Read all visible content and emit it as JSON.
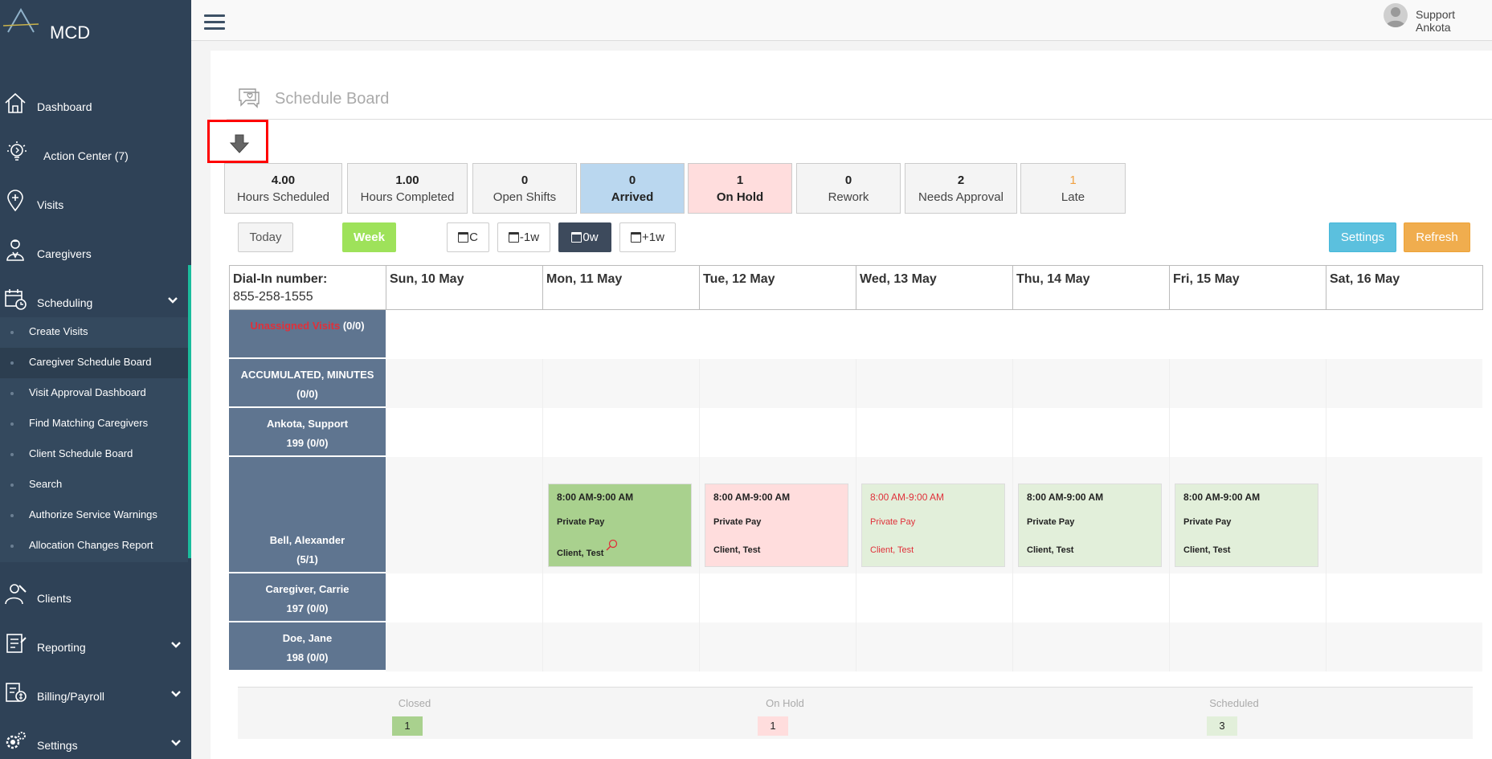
{
  "app": {
    "logo_text": "MCD"
  },
  "sidebar": {
    "items": [
      {
        "label": "Dashboard"
      },
      {
        "label": "Action Center (7)"
      },
      {
        "label": "Visits"
      },
      {
        "label": "Caregivers"
      },
      {
        "label": "Scheduling"
      },
      {
        "label": "Clients"
      },
      {
        "label": "Reporting"
      },
      {
        "label": "Billing/Payroll"
      },
      {
        "label": "Settings"
      }
    ],
    "scheduling_sub": [
      {
        "label": "Create Visits"
      },
      {
        "label": "Caregiver Schedule Board"
      },
      {
        "label": "Visit Approval Dashboard"
      },
      {
        "label": "Find Matching Caregivers"
      },
      {
        "label": "Client Schedule Board"
      },
      {
        "label": "Search"
      },
      {
        "label": "Authorize Service Warnings"
      },
      {
        "label": "Allocation Changes Report"
      }
    ]
  },
  "topbar": {
    "user_name": "Support Ankota"
  },
  "page": {
    "title": "Schedule Board"
  },
  "stats": [
    {
      "value": "4.00",
      "label": "Hours Scheduled"
    },
    {
      "value": "1.00",
      "label": "Hours Completed"
    },
    {
      "value": "0",
      "label": "Open Shifts"
    },
    {
      "value": "0",
      "label": "Arrived"
    },
    {
      "value": "1",
      "label": "On Hold"
    },
    {
      "value": "0",
      "label": "Rework"
    },
    {
      "value": "2",
      "label": "Needs Approval"
    },
    {
      "value": "1",
      "label": "Late"
    }
  ],
  "toolbar": {
    "today": "Today",
    "week": "Week",
    "c": "C",
    "minus1w": "-1w",
    "zero_w": "0w",
    "plus1w": "+1w",
    "settings": "Settings",
    "refresh": "Refresh"
  },
  "grid": {
    "dial_in_label": "Dial-In number:",
    "dial_in_number": "855-258-1555",
    "days": [
      "Sun, 10 May",
      "Mon, 11 May",
      "Tue, 12 May",
      "Wed, 13 May",
      "Thu, 14 May",
      "Fri, 15 May",
      "Sat, 16 May"
    ],
    "rows": [
      {
        "name": "Unassigned Visits",
        "meta": "(0/0)"
      },
      {
        "name": "ACCUMULATED, MINUTES",
        "meta": "(0/0)"
      },
      {
        "name": "Ankota, Support",
        "meta": "199  (0/0)"
      },
      {
        "name": "Bell, Alexander",
        "meta": "(5/1)"
      },
      {
        "name": "Caregiver, Carrie",
        "meta": "197  (0/0)"
      },
      {
        "name": "Doe, Jane",
        "meta": "198  (0/0)"
      }
    ],
    "visits": [
      {
        "time": "8:00 AM-9:00 AM",
        "payer": "Private Pay",
        "client": "Client, Test"
      },
      {
        "time": "8:00 AM-9:00 AM",
        "payer": "Private Pay",
        "client": "Client, Test"
      },
      {
        "time": "8:00 AM-9:00 AM",
        "payer": "Private Pay",
        "client": "Client, Test"
      },
      {
        "time": "8:00 AM-9:00 AM",
        "payer": "Private Pay",
        "client": "Client, Test"
      },
      {
        "time": "8:00 AM-9:00 AM",
        "payer": "Private Pay",
        "client": "Client, Test"
      }
    ]
  },
  "legend": [
    {
      "label": "Closed",
      "count": "1"
    },
    {
      "label": "On Hold",
      "count": "1"
    },
    {
      "label": "Scheduled",
      "count": "3"
    }
  ],
  "colors": {
    "sidebar_bg": "#2f4257",
    "accent": "#1abc9c",
    "row_label_bg": "#5f7590",
    "closed": "#a9d18e",
    "on_hold": "#ffdddd",
    "scheduled": "#e2efda",
    "arrived": "#bad7ef",
    "week_btn": "#9ee25a",
    "settings_btn": "#5bc0de",
    "refresh_btn": "#f0ad4e",
    "late_text": "#f0a040",
    "unassigned_text": "#e0303a"
  }
}
